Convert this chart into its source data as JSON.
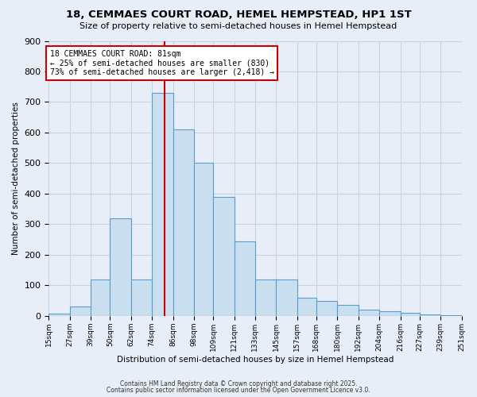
{
  "title": "18, CEMMAES COURT ROAD, HEMEL HEMPSTEAD, HP1 1ST",
  "subtitle": "Size of property relative to semi-detached houses in Hemel Hempstead",
  "xlabel": "Distribution of semi-detached houses by size in Hemel Hempstead",
  "ylabel": "Number of semi-detached properties",
  "footnote1": "Contains HM Land Registry data © Crown copyright and database right 2025.",
  "footnote2": "Contains public sector information licensed under the Open Government Licence v3.0.",
  "property_label": "18 CEMMAES COURT ROAD: 81sqm",
  "pct_smaller": 25,
  "count_smaller": 830,
  "pct_larger": 73,
  "count_larger": 2418,
  "bin_labels": [
    "15sqm",
    "27sqm",
    "39sqm",
    "50sqm",
    "62sqm",
    "74sqm",
    "86sqm",
    "98sqm",
    "109sqm",
    "121sqm",
    "133sqm",
    "145sqm",
    "157sqm",
    "168sqm",
    "180sqm",
    "192sqm",
    "204sqm",
    "216sqm",
    "227sqm",
    "239sqm",
    "251sqm"
  ],
  "bin_edges": [
    15,
    27,
    39,
    50,
    62,
    74,
    86,
    98,
    109,
    121,
    133,
    145,
    157,
    168,
    180,
    192,
    204,
    216,
    227,
    239,
    251
  ],
  "bar_heights": [
    8,
    30,
    120,
    320,
    120,
    730,
    610,
    500,
    390,
    245,
    120,
    120,
    60,
    50,
    35,
    20,
    15,
    10,
    5,
    2
  ],
  "bar_facecolor": "#c9dff0",
  "bar_edgecolor": "#5b9dc9",
  "vline_x": 81,
  "vline_color": "#cc0000",
  "grid_color": "#c8d4e4",
  "bg_color": "#e8eef8",
  "ylim": [
    0,
    900
  ],
  "yticks": [
    0,
    100,
    200,
    300,
    400,
    500,
    600,
    700,
    800,
    900
  ]
}
